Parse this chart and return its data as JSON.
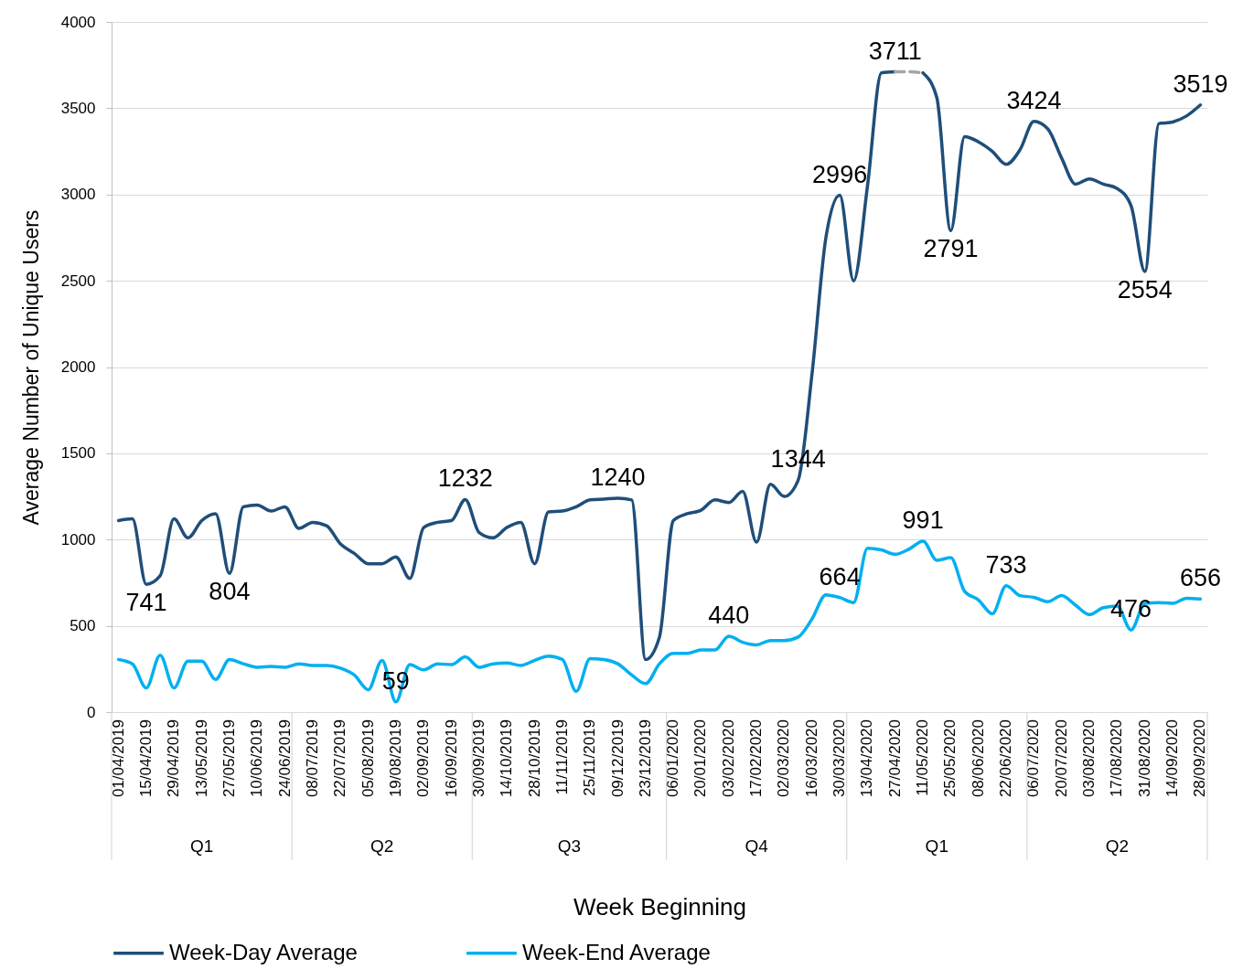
{
  "chart_data": {
    "type": "line",
    "xlabel": "Week Beginning",
    "ylabel": "Average Number of Unique Users",
    "x": [
      "2019-04-01",
      "2019-04-08",
      "2019-04-15",
      "2019-04-22",
      "2019-04-29",
      "2019-05-06",
      "2019-05-13",
      "2019-05-20",
      "2019-05-27",
      "2019-06-03",
      "2019-06-10",
      "2019-06-17",
      "2019-06-24",
      "2019-07-01",
      "2019-07-08",
      "2019-07-15",
      "2019-07-22",
      "2019-07-29",
      "2019-08-05",
      "2019-08-12",
      "2019-08-19",
      "2019-08-26",
      "2019-09-02",
      "2019-09-09",
      "2019-09-16",
      "2019-09-23",
      "2019-09-30",
      "2019-10-07",
      "2019-10-14",
      "2019-10-21",
      "2019-10-28",
      "2019-11-04",
      "2019-11-11",
      "2019-11-18",
      "2019-11-25",
      "2019-12-02",
      "2019-12-09",
      "2019-12-16",
      "2019-12-23",
      "2019-12-30",
      "2020-01-06",
      "2020-01-13",
      "2020-01-20",
      "2020-01-27",
      "2020-02-03",
      "2020-02-10",
      "2020-02-17",
      "2020-02-24",
      "2020-03-02",
      "2020-03-09",
      "2020-03-16",
      "2020-03-23",
      "2020-03-30",
      "2020-04-06",
      "2020-04-13",
      "2020-04-20",
      "2020-04-27",
      "2020-05-04",
      "2020-05-11",
      "2020-05-18",
      "2020-05-25",
      "2020-06-01",
      "2020-06-08",
      "2020-06-15",
      "2020-06-22",
      "2020-06-29",
      "2020-07-06",
      "2020-07-13",
      "2020-07-20",
      "2020-07-27",
      "2020-08-03",
      "2020-08-10",
      "2020-08-17",
      "2020-08-24",
      "2020-08-31",
      "2020-09-07",
      "2020-09-14",
      "2020-09-21",
      "2020-09-28"
    ],
    "series": [
      {
        "name": "Week-Day Average",
        "color": "#1f4e79",
        "values": [
          1110,
          1120,
          741,
          790,
          1120,
          1010,
          1110,
          1150,
          804,
          1190,
          1200,
          1165,
          1190,
          1065,
          1100,
          1080,
          975,
          920,
          860,
          860,
          900,
          775,
          1070,
          1100,
          1110,
          1232,
          1040,
          1010,
          1070,
          1100,
          860,
          1160,
          1165,
          1190,
          1230,
          1235,
          1240,
          1230,
          305,
          435,
          1110,
          1150,
          1170,
          1230,
          1215,
          1280,
          985,
          1320,
          1250,
          1344,
          1960,
          2750,
          2996,
          2500,
          3050,
          3705,
          3711,
          null,
          3705,
          3560,
          2791,
          3335,
          3305,
          3250,
          3175,
          3260,
          3424,
          3380,
          3210,
          3060,
          3090,
          3060,
          3035,
          2935,
          2554,
          3410,
          3420,
          3455,
          3519
        ],
        "value_labels": [
          null,
          null,
          "741",
          null,
          null,
          null,
          null,
          null,
          "804",
          null,
          null,
          null,
          null,
          null,
          null,
          null,
          null,
          null,
          null,
          null,
          null,
          null,
          null,
          null,
          null,
          "1232",
          null,
          null,
          null,
          null,
          null,
          null,
          null,
          null,
          null,
          null,
          "1240",
          null,
          null,
          null,
          null,
          null,
          null,
          null,
          null,
          null,
          null,
          null,
          null,
          "1344",
          null,
          null,
          "2996",
          null,
          null,
          null,
          "3711",
          null,
          null,
          null,
          "2791",
          null,
          null,
          null,
          null,
          null,
          "3424",
          null,
          null,
          null,
          null,
          null,
          null,
          null,
          "2554",
          null,
          null,
          null,
          "3519"
        ]
      },
      {
        "name": "Week-End Average",
        "color": "#00b0f0",
        "values": [
          305,
          280,
          140,
          330,
          140,
          295,
          295,
          190,
          305,
          280,
          260,
          265,
          260,
          280,
          270,
          270,
          255,
          215,
          130,
          300,
          59,
          275,
          245,
          280,
          275,
          320,
          260,
          280,
          285,
          270,
          300,
          325,
          305,
          120,
          310,
          305,
          280,
          215,
          165,
          280,
          340,
          340,
          360,
          360,
          440,
          405,
          390,
          415,
          415,
          435,
          540,
          680,
          664,
          635,
          950,
          940,
          915,
          945,
          991,
          880,
          895,
          700,
          650,
          570,
          733,
          675,
          665,
          640,
          675,
          620,
          565,
          605,
          615,
          476,
          630,
          635,
          630,
          660,
          656
        ],
        "value_labels": [
          null,
          null,
          null,
          null,
          null,
          null,
          null,
          null,
          null,
          null,
          null,
          null,
          null,
          null,
          null,
          null,
          null,
          null,
          null,
          null,
          "59",
          null,
          null,
          null,
          null,
          null,
          null,
          null,
          null,
          null,
          null,
          null,
          null,
          null,
          null,
          null,
          null,
          null,
          null,
          null,
          null,
          null,
          null,
          null,
          "440",
          null,
          null,
          null,
          null,
          null,
          null,
          null,
          "664",
          null,
          null,
          null,
          null,
          null,
          "991",
          null,
          null,
          null,
          null,
          null,
          "733",
          null,
          null,
          null,
          null,
          null,
          null,
          null,
          null,
          "476",
          null,
          null,
          null,
          null,
          "656"
        ]
      },
      {
        "type": "line",
        "color": "#a6a6a6",
        "line_style": "dashed",
        "x": [
          "2020-04-27",
          "2020-05-04",
          "2020-05-11"
        ],
        "values": [
          3711,
          3711,
          3705
        ]
      }
    ],
    "xlim": [
      "2019-03-28T12:00",
      "2020-10-01T12:00"
    ],
    "xticks": [
      {
        "value": "2019-04-01",
        "label": "01/04/2019"
      },
      {
        "value": "2019-04-15",
        "label": "15/04/2019"
      },
      {
        "value": "2019-04-29",
        "label": "29/04/2019"
      },
      {
        "value": "2019-05-13",
        "label": "13/05/2019"
      },
      {
        "value": "2019-05-27",
        "label": "27/05/2019"
      },
      {
        "value": "2019-06-10",
        "label": "10/06/2019"
      },
      {
        "value": "2019-06-24",
        "label": "24/06/2019"
      },
      {
        "value": "2019-07-08",
        "label": "08/07/2019"
      },
      {
        "value": "2019-07-22",
        "label": "22/07/2019"
      },
      {
        "value": "2019-08-05",
        "label": "05/08/2019"
      },
      {
        "value": "2019-08-19",
        "label": "19/08/2019"
      },
      {
        "value": "2019-09-02",
        "label": "02/09/2019"
      },
      {
        "value": "2019-09-16",
        "label": "16/09/2019"
      },
      {
        "value": "2019-09-30",
        "label": "30/09/2019"
      },
      {
        "value": "2019-10-14",
        "label": "14/10/2019"
      },
      {
        "value": "2019-10-28",
        "label": "28/10/2019"
      },
      {
        "value": "2019-11-11",
        "label": "11/11/2019"
      },
      {
        "value": "2019-11-25",
        "label": "25/11/2019"
      },
      {
        "value": "2019-12-09",
        "label": "09/12/2019"
      },
      {
        "value": "2019-12-23",
        "label": "23/12/2019"
      },
      {
        "value": "2020-01-06",
        "label": "06/01/2020"
      },
      {
        "value": "2020-01-20",
        "label": "20/01/2020"
      },
      {
        "value": "2020-02-03",
        "label": "03/02/2020"
      },
      {
        "value": "2020-02-17",
        "label": "17/02/2020"
      },
      {
        "value": "2020-03-02",
        "label": "02/03/2020"
      },
      {
        "value": "2020-03-16",
        "label": "16/03/2020"
      },
      {
        "value": "2020-03-30",
        "label": "30/03/2020"
      },
      {
        "value": "2020-04-13",
        "label": "13/04/2020"
      },
      {
        "value": "2020-04-27",
        "label": "27/04/2020"
      },
      {
        "value": "2020-05-11",
        "label": "11/05/2020"
      },
      {
        "value": "2020-05-25",
        "label": "25/05/2020"
      },
      {
        "value": "2020-06-08",
        "label": "08/06/2020"
      },
      {
        "value": "2020-06-22",
        "label": "22/06/2020"
      },
      {
        "value": "2020-07-06",
        "label": "06/07/2020"
      },
      {
        "value": "2020-07-20",
        "label": "20/07/2020"
      },
      {
        "value": "2020-08-03",
        "label": "03/08/2020"
      },
      {
        "value": "2020-08-17",
        "label": "17/08/2020"
      },
      {
        "value": "2020-08-31",
        "label": "31/08/2020"
      },
      {
        "value": "2020-09-14",
        "label": "14/09/2020"
      },
      {
        "value": "2020-09-28",
        "label": "28/09/2020"
      }
    ],
    "ylim": [
      0,
      4000
    ],
    "yticks": [
      0,
      500,
      1000,
      1500,
      2000,
      2500,
      3000,
      3500,
      4000
    ],
    "grid": "y",
    "legend": "bottom",
    "annotations": [
      "Q1",
      "Q2",
      "Q3",
      "Q4",
      "Q1",
      "Q2"
    ]
  }
}
